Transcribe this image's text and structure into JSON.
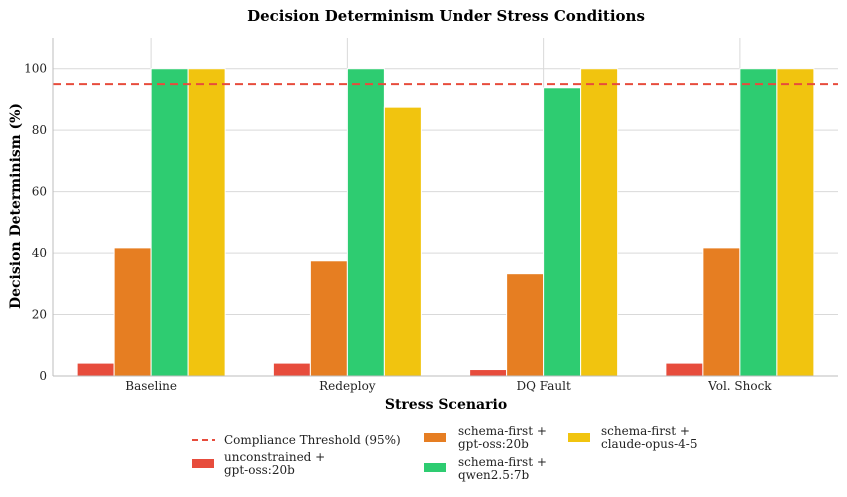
{
  "chart_data": {
    "type": "bar",
    "title": "Decision Determinism Under Stress Conditions",
    "xlabel": "Stress Scenario",
    "ylabel": "Decision Determinism (%)",
    "ylim": [
      0,
      110
    ],
    "yticks": [
      0,
      20,
      40,
      60,
      80,
      100
    ],
    "categories": [
      "Baseline",
      "Redeploy",
      "DQ Fault",
      "Vol. Shock"
    ],
    "series": [
      {
        "name": "unconstrained + gpt-oss:20b",
        "legend_lines": [
          "unconstrained +",
          "gpt-oss:20b"
        ],
        "color": "#e74c3c",
        "values": [
          4.2,
          4.2,
          2.1,
          4.2
        ]
      },
      {
        "name": "schema-first + gpt-oss:20b",
        "legend_lines": [
          "schema-first +",
          "gpt-oss:20b"
        ],
        "color": "#e67e22",
        "values": [
          41.7,
          37.5,
          33.3,
          41.7
        ]
      },
      {
        "name": "schema-first + qwen2.5:7b",
        "legend_lines": [
          "schema-first +",
          "qwen2.5:7b"
        ],
        "color": "#2ecc71",
        "values": [
          100,
          100,
          93.8,
          100
        ]
      },
      {
        "name": "schema-first + claude-opus-4-5",
        "legend_lines": [
          "schema-first +",
          "claude-opus-4-5"
        ],
        "color": "#f1c40f",
        "values": [
          100,
          87.5,
          100,
          100
        ]
      }
    ],
    "threshold": {
      "label": "Compliance Threshold (95%)",
      "value": 95,
      "color": "#e74c3c"
    },
    "grid": true,
    "legend_position": "bottom-center"
  }
}
